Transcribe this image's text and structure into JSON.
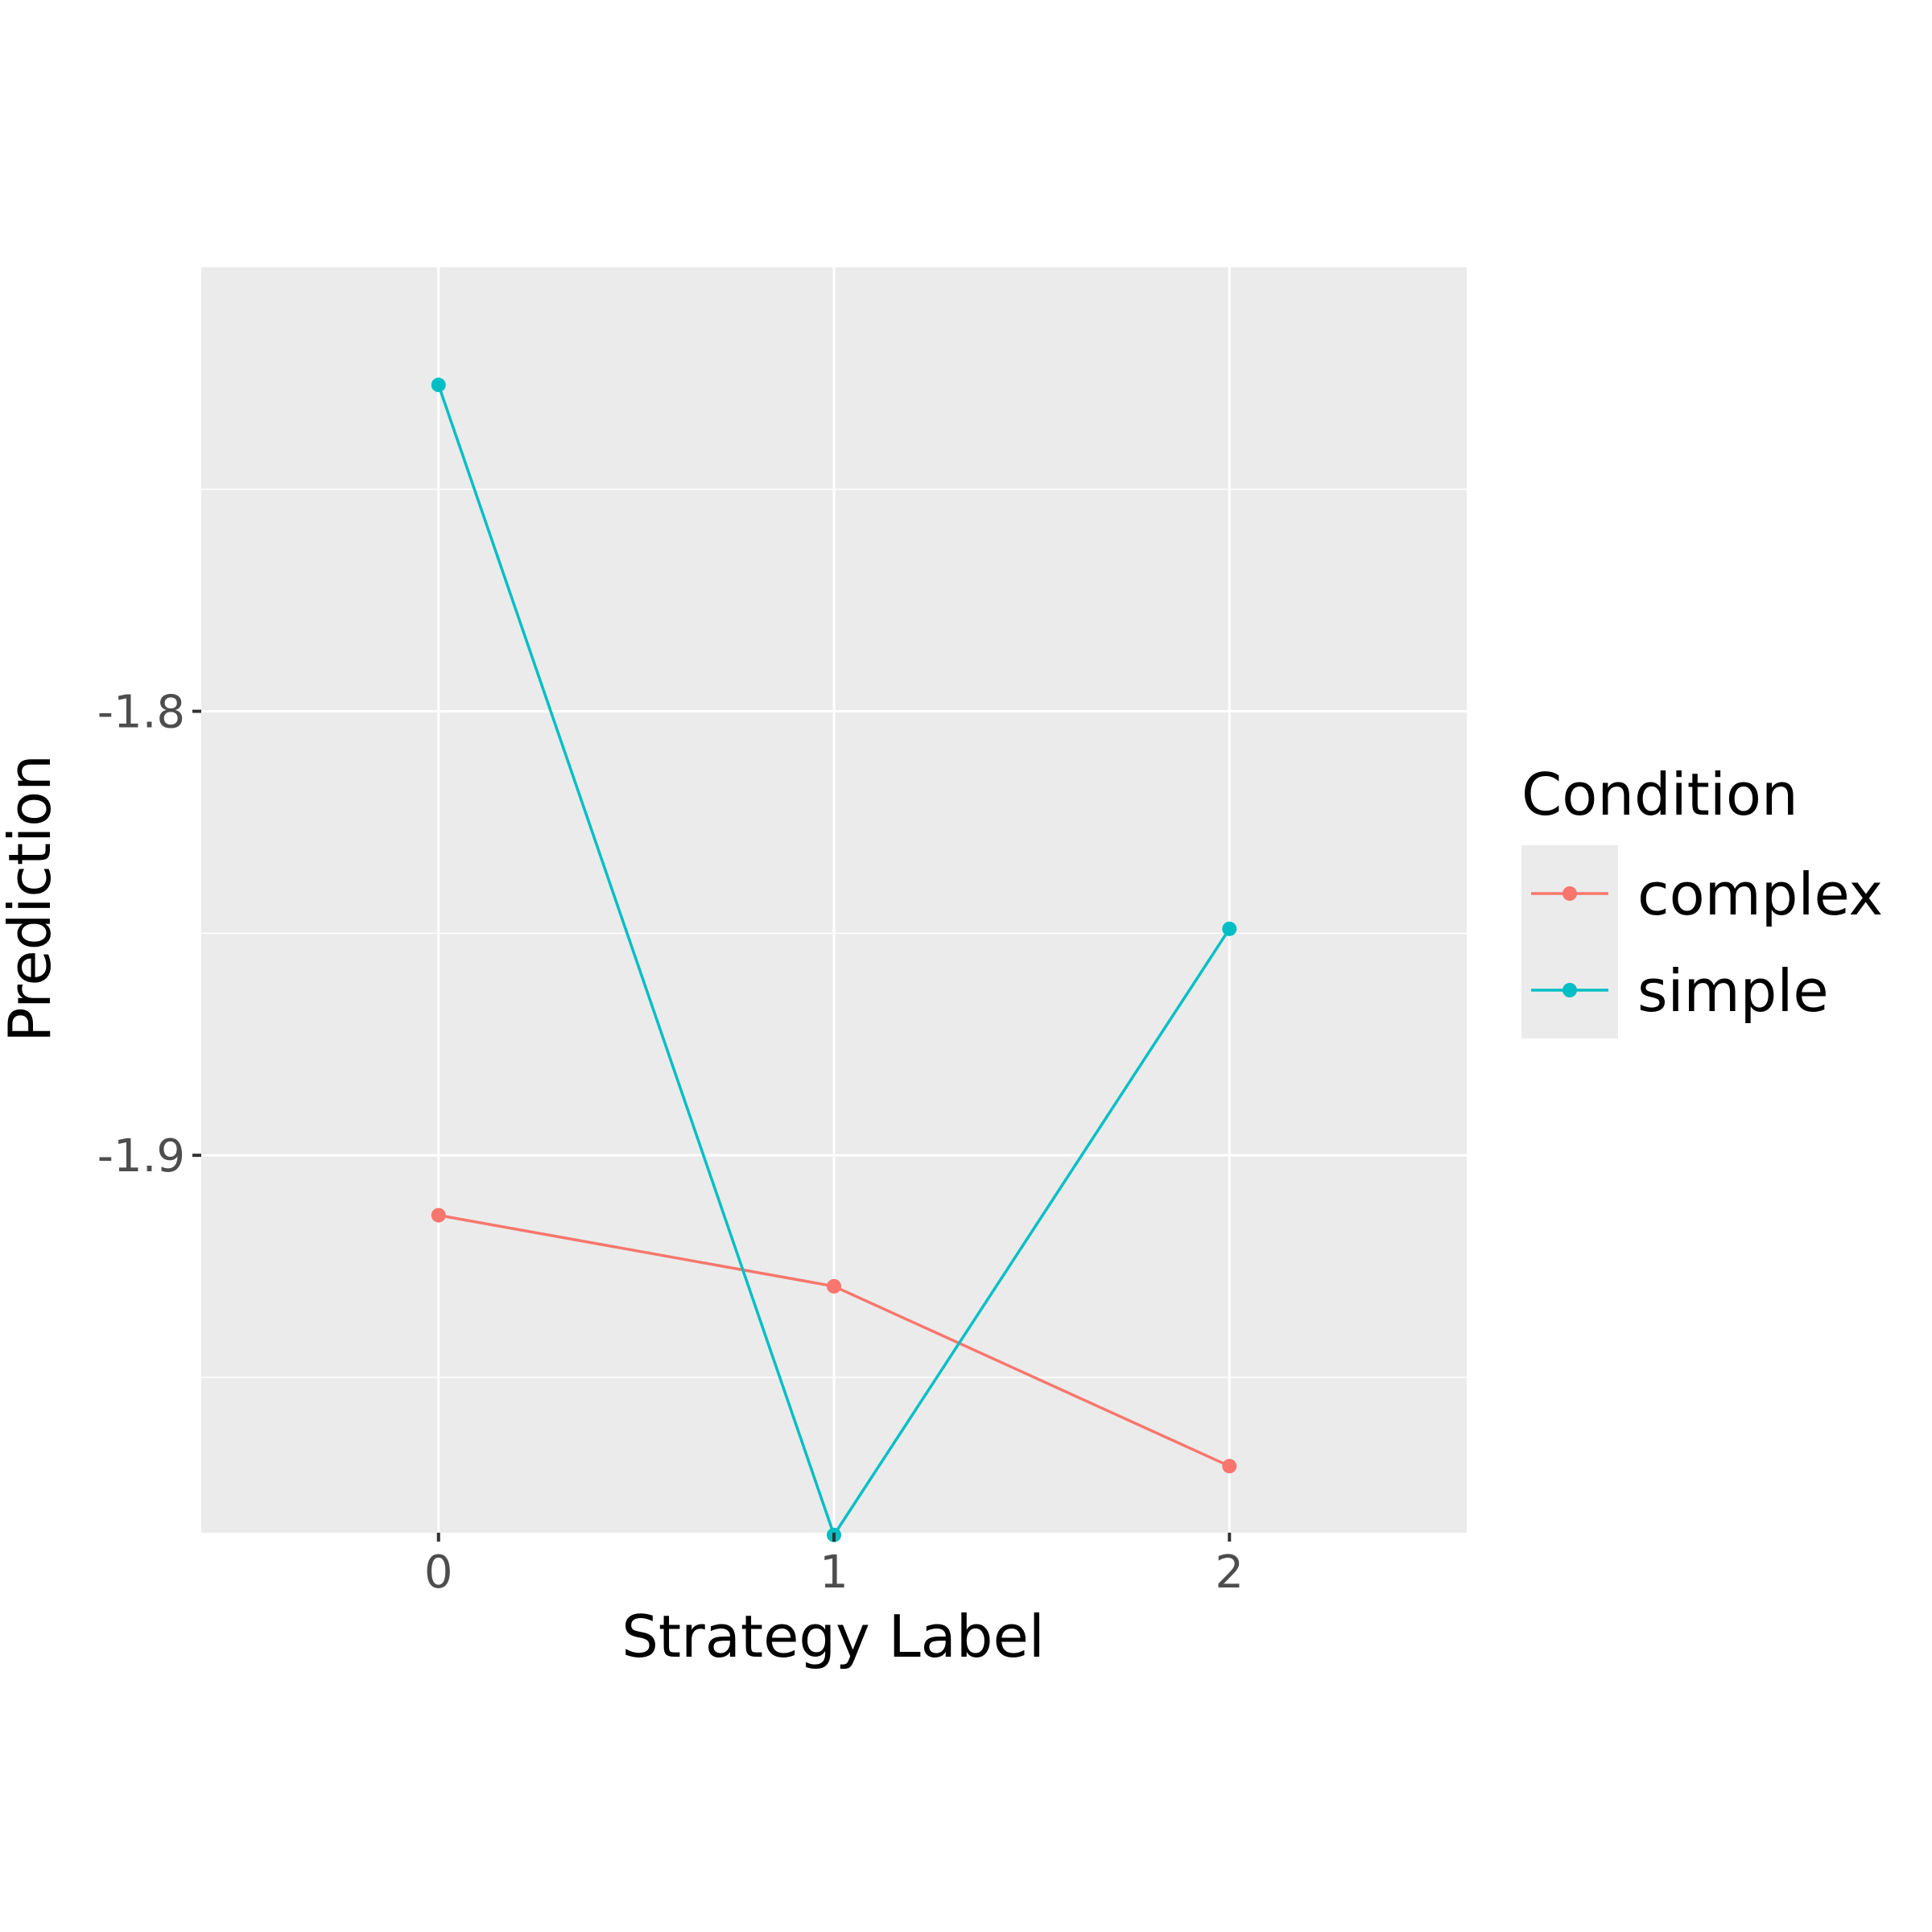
{
  "chart_data": {
    "type": "line",
    "xlabel": "Strategy Label",
    "ylabel": "Prediction",
    "x": [
      0,
      1,
      2
    ],
    "x_tick_labels": [
      "0",
      "1",
      "2"
    ],
    "y_ticks": [
      -1.8,
      -1.9
    ],
    "y_tick_labels": [
      "-1.8",
      "-1.9"
    ],
    "xlim": [
      -0.6,
      2.6
    ],
    "ylim": [
      -1.985,
      -1.7
    ],
    "grid": true,
    "legend": {
      "title": "Condition",
      "placement": "right"
    },
    "series": [
      {
        "name": "complex",
        "color": "#F8766D",
        "values": [
          -1.9135,
          -1.9295,
          -1.97
        ]
      },
      {
        "name": "simple",
        "color": "#00BFC4",
        "values": [
          -1.7265,
          -1.9855,
          -1.849
        ]
      }
    ]
  }
}
